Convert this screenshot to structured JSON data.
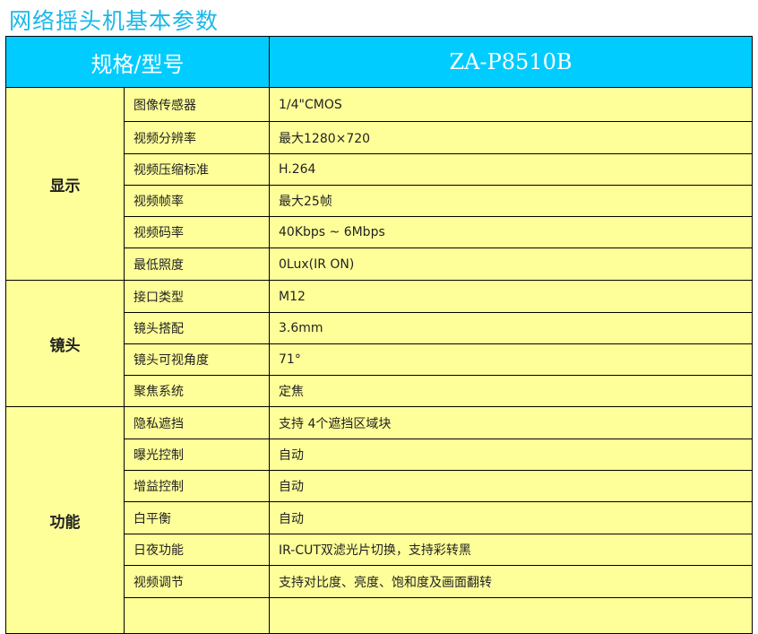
{
  "title": "网络摇头机基本参数",
  "header": {
    "spec": "规格/型号",
    "model": "ZA-P8510B"
  },
  "groups": [
    {
      "name": "显示",
      "rows": [
        [
          "图像传感器",
          "1/4\"CMOS"
        ],
        [
          "视频分辨率",
          "最大1280×720"
        ],
        [
          "视频压缩标准",
          "H.264"
        ],
        [
          "视频帧率",
          "最大25帧"
        ],
        [
          "视频码率",
          "40Kbps ~ 6Mbps"
        ],
        [
          "最低照度",
          "0Lux(IR ON)"
        ]
      ]
    },
    {
      "name": "镜头",
      "rows": [
        [
          "接口类型",
          "M12"
        ],
        [
          "镜头搭配",
          "3.6mm"
        ],
        [
          "镜头可视角度",
          "71°"
        ],
        [
          "聚焦系统",
          "定焦"
        ]
      ]
    },
    {
      "name": "功能",
      "rows": [
        [
          "隐私遮挡",
          "支持 4个遮挡区域块"
        ],
        [
          "曝光控制",
          "自动"
        ],
        [
          "增益控制",
          "自动"
        ],
        [
          "白平衡",
          "自动"
        ],
        [
          "日夜功能",
          "IR-CUT双滤光片切换，支持彩转黑"
        ],
        [
          "视频调节",
          "支持对比度、亮度、饱和度及画面翻转"
        ],
        [
          "",
          ""
        ]
      ]
    }
  ]
}
